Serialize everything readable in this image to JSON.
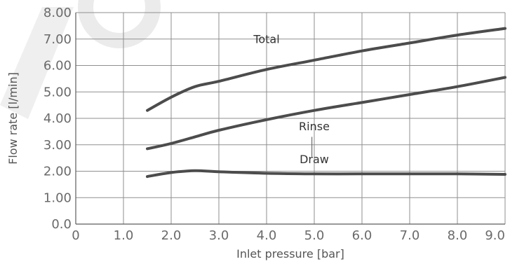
{
  "chart_data": {
    "type": "line",
    "title": "",
    "xlabel": "Inlet pressure [bar]",
    "ylabel": "Flow rate [l/min]",
    "xlim": [
      0,
      9.0
    ],
    "ylim": [
      0,
      8.0
    ],
    "grid": true,
    "x_ticks": [
      0,
      1.0,
      2.0,
      3.0,
      4.0,
      5.0,
      6.0,
      7.0,
      8.0,
      9.0
    ],
    "x_tick_labels": [
      "0",
      "1.0",
      "2.0",
      "3.0",
      "4.0",
      "5.0",
      "6.0",
      "7.0",
      "8.0",
      "9.0"
    ],
    "y_ticks": [
      0,
      1.0,
      2.0,
      3.0,
      4.0,
      5.0,
      6.0,
      7.0,
      8.0
    ],
    "y_tick_labels": [
      "0.0",
      "1.00",
      "2.00",
      "3.00",
      "4.00",
      "5.00",
      "6.00",
      "7.00",
      "8.00"
    ],
    "series": [
      {
        "name": "Total",
        "x": [
          1.5,
          2.0,
          2.5,
          3.0,
          4.0,
          5.0,
          6.0,
          7.0,
          8.0,
          9.0
        ],
        "y": [
          4.3,
          4.8,
          5.2,
          5.4,
          5.85,
          6.2,
          6.55,
          6.85,
          7.15,
          7.4
        ]
      },
      {
        "name": "Rinse",
        "x": [
          1.5,
          2.0,
          2.5,
          3.0,
          4.0,
          5.0,
          6.0,
          7.0,
          8.0,
          9.0
        ],
        "y": [
          2.85,
          3.05,
          3.3,
          3.55,
          3.95,
          4.3,
          4.6,
          4.9,
          5.2,
          5.55
        ]
      },
      {
        "name": "Draw",
        "x": [
          1.5,
          2.0,
          2.5,
          3.0,
          4.0,
          5.0,
          6.0,
          7.0,
          8.0,
          9.0
        ],
        "y": [
          1.8,
          1.95,
          2.02,
          1.98,
          1.92,
          1.9,
          1.9,
          1.9,
          1.9,
          1.88
        ]
      }
    ],
    "annotations": [
      {
        "text": "Total",
        "series": "Total",
        "x": 4.0,
        "y": 6.85
      },
      {
        "text": "Rinse",
        "series": "Rinse",
        "x": 5.0,
        "y": 3.55
      },
      {
        "text": "Draw",
        "series": "Draw",
        "x": 5.0,
        "y": 2.3
      }
    ]
  }
}
